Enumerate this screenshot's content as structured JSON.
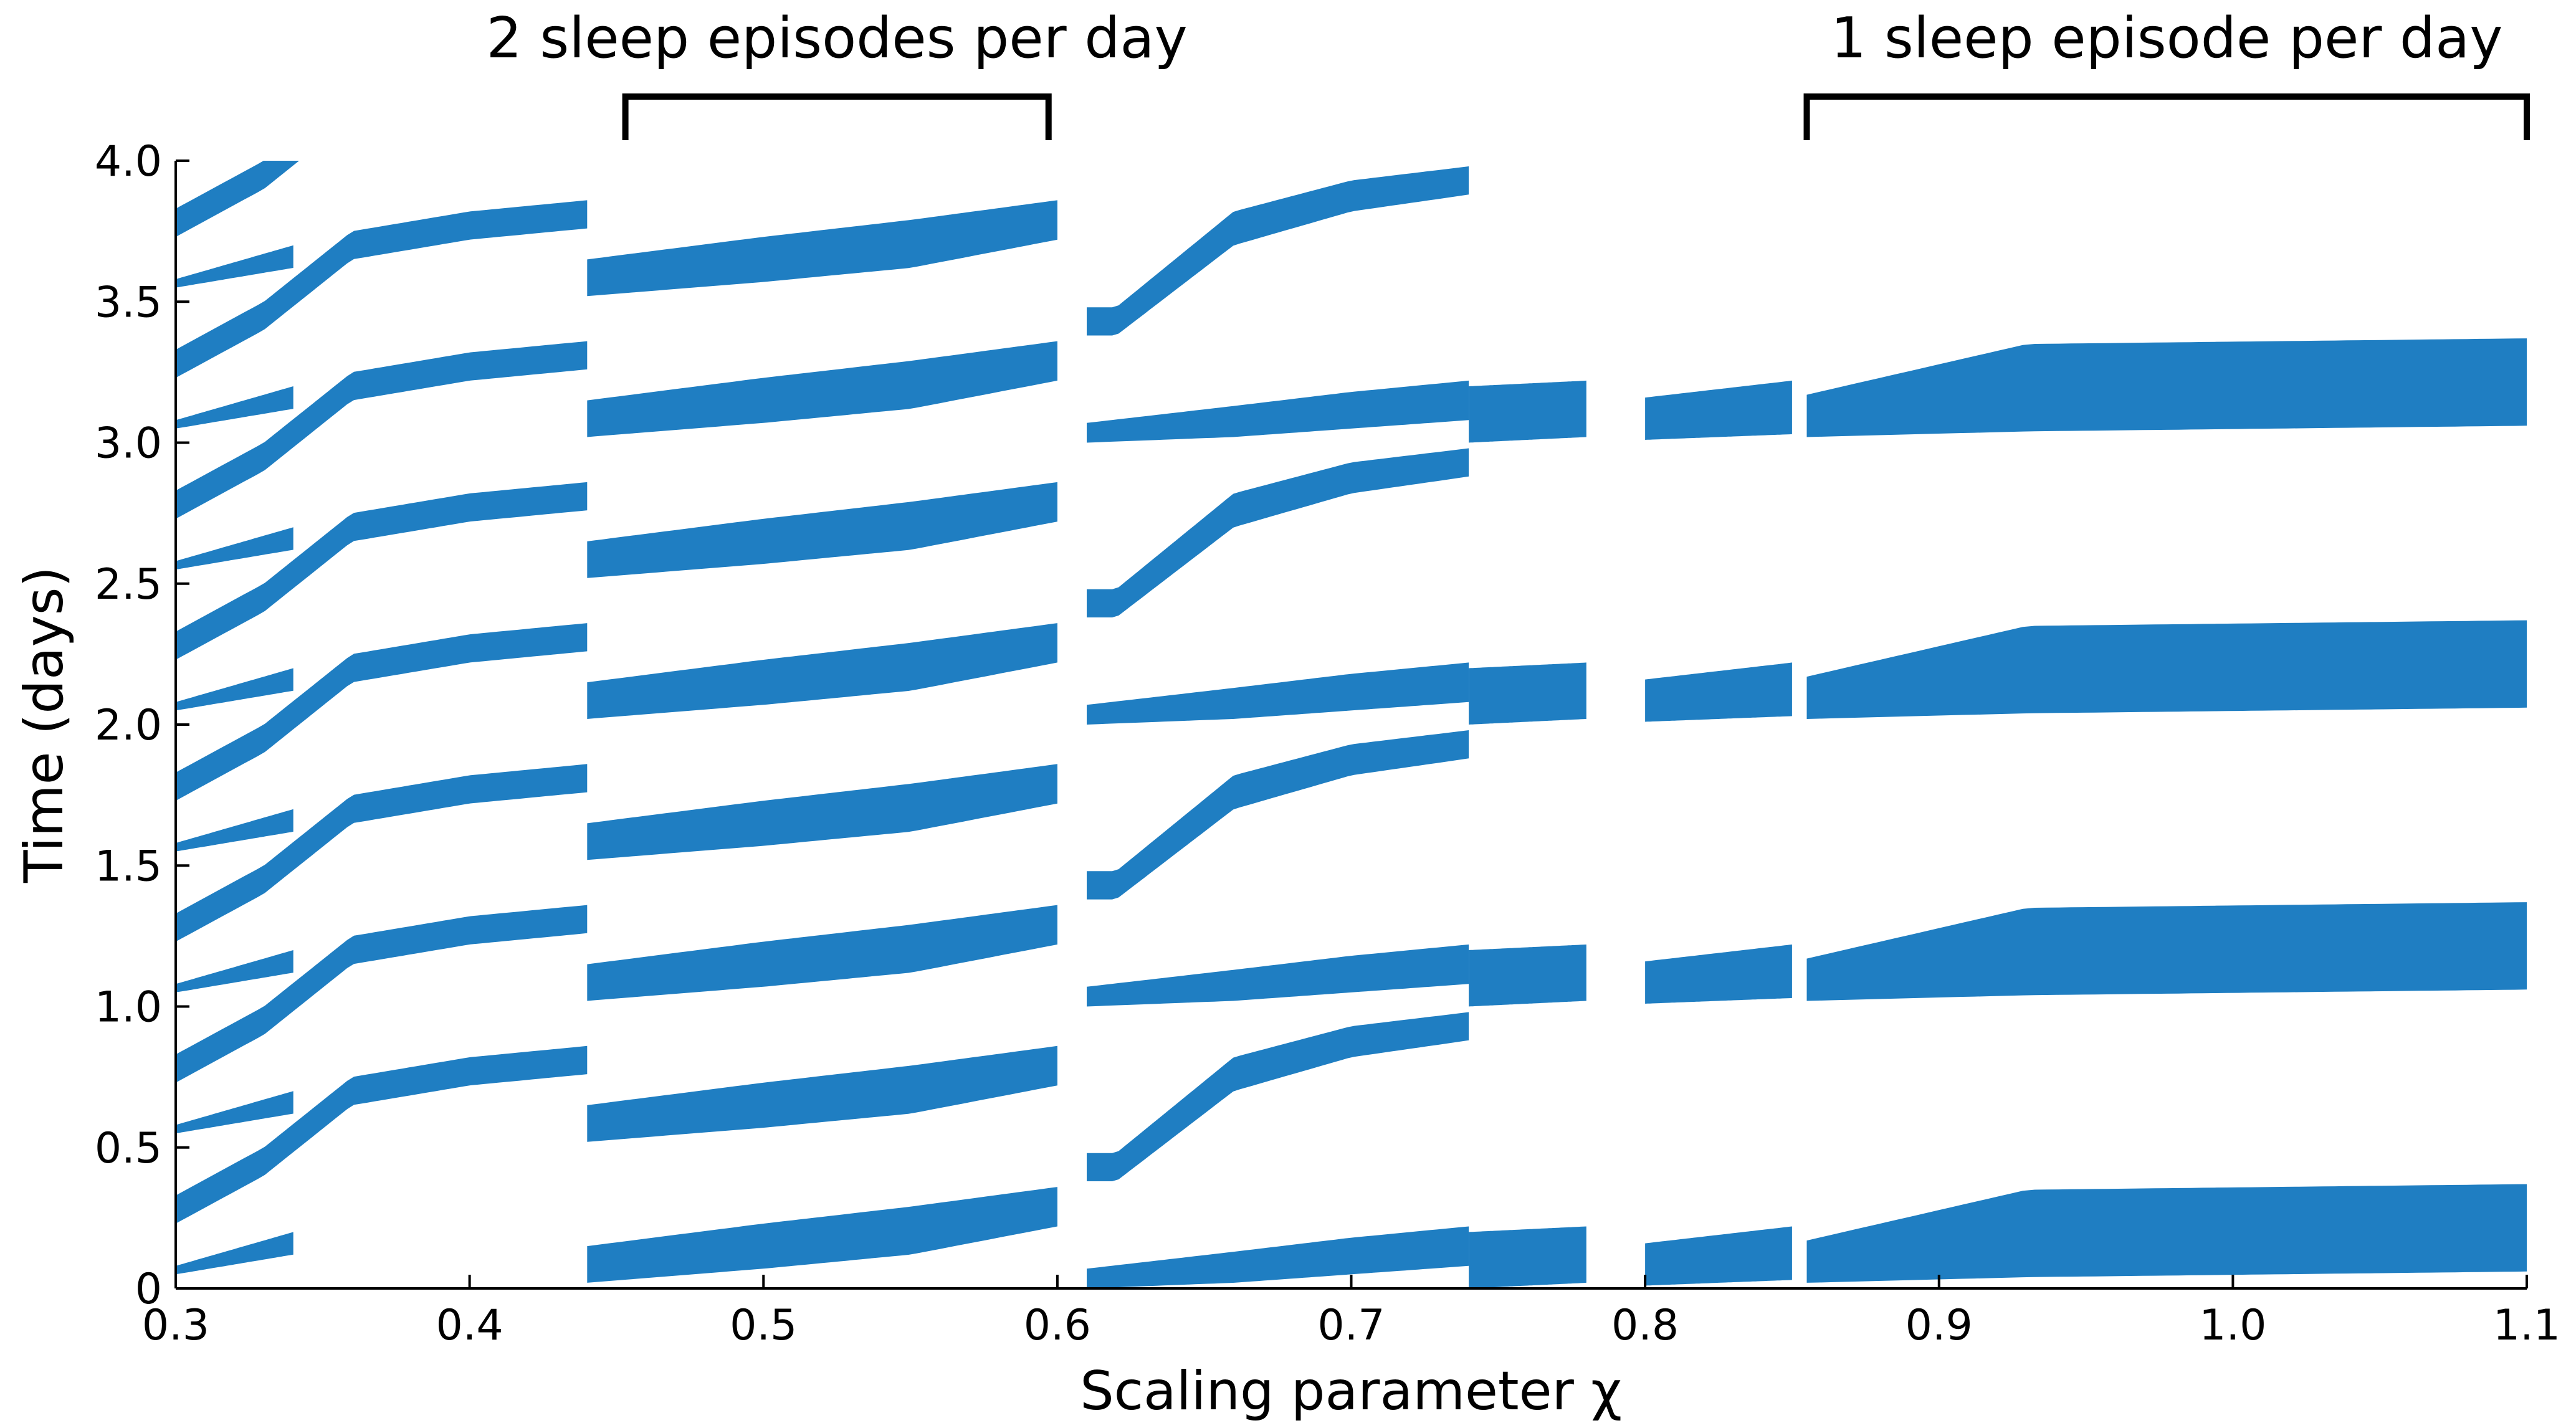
{
  "chart_data": {
    "type": "scatter",
    "title": "",
    "xlabel": "Scaling parameter χ",
    "ylabel": "Time (days)",
    "xlim": [
      0.3,
      1.1
    ],
    "ylim": [
      0,
      4.0
    ],
    "grid": false,
    "legend": "none",
    "series_color": "#1f7ec2",
    "x_ticks": [
      {
        "value": 0.3,
        "label": "0.3"
      },
      {
        "value": 0.4,
        "label": "0.4"
      },
      {
        "value": 0.5,
        "label": "0.5"
      },
      {
        "value": 0.6,
        "label": "0.6"
      },
      {
        "value": 0.7,
        "label": "0.7"
      },
      {
        "value": 0.8,
        "label": "0.8"
      },
      {
        "value": 0.9,
        "label": "0.9"
      },
      {
        "value": 1.0,
        "label": "1.0"
      },
      {
        "value": 1.1,
        "label": "1.1"
      }
    ],
    "y_ticks": [
      {
        "value": 0.0,
        "label": "0"
      },
      {
        "value": 0.5,
        "label": "0.5"
      },
      {
        "value": 1.0,
        "label": "1.0"
      },
      {
        "value": 1.5,
        "label": "1.5"
      },
      {
        "value": 2.0,
        "label": "2.0"
      },
      {
        "value": 2.5,
        "label": "2.5"
      },
      {
        "value": 3.0,
        "label": "3.0"
      },
      {
        "value": 3.5,
        "label": "3.5"
      },
      {
        "value": 4.0,
        "label": "4.0"
      }
    ],
    "annotations": [
      {
        "text": "2 sleep episodes per day",
        "x_from": 0.453,
        "x_to": 0.597
      },
      {
        "text": "1 sleep episode per day",
        "x_from": 0.855,
        "x_to": 1.1
      }
    ],
    "sleep_bands": [
      {
        "x": [
          0.3,
          0.34
        ],
        "lower": [
          [
            0.3,
            0.05
          ],
          [
            0.34,
            0.12
          ]
        ],
        "upper": [
          [
            0.3,
            0.08
          ],
          [
            0.34,
            0.2
          ]
        ],
        "period": 0.5
      },
      {
        "x": [
          0.3,
          0.44
        ],
        "lower": [
          [
            0.3,
            0.23
          ],
          [
            0.33,
            0.4
          ],
          [
            0.36,
            0.65
          ],
          [
            0.4,
            0.72
          ],
          [
            0.44,
            0.76
          ]
        ],
        "upper": [
          [
            0.3,
            0.33
          ],
          [
            0.33,
            0.5
          ],
          [
            0.36,
            0.75
          ],
          [
            0.4,
            0.82
          ],
          [
            0.44,
            0.86
          ]
        ],
        "period": 0.5
      },
      {
        "x": [
          0.44,
          0.6
        ],
        "lower": [
          [
            0.44,
            0.02
          ],
          [
            0.5,
            0.07
          ],
          [
            0.55,
            0.12
          ],
          [
            0.6,
            0.22
          ]
        ],
        "upper": [
          [
            0.44,
            0.15
          ],
          [
            0.5,
            0.23
          ],
          [
            0.55,
            0.29
          ],
          [
            0.6,
            0.36
          ]
        ],
        "period": 0.5
      },
      {
        "x": [
          0.61,
          0.74
        ],
        "lower": [
          [
            0.61,
            0.0
          ],
          [
            0.66,
            0.02
          ],
          [
            0.7,
            0.05
          ],
          [
            0.74,
            0.08
          ]
        ],
        "upper": [
          [
            0.61,
            0.07
          ],
          [
            0.66,
            0.13
          ],
          [
            0.7,
            0.18
          ],
          [
            0.74,
            0.22
          ]
        ],
        "period": 1.0
      },
      {
        "x": [
          0.61,
          0.74
        ],
        "lower": [
          [
            0.62,
            0.38
          ],
          [
            0.66,
            0.7
          ],
          [
            0.7,
            0.82
          ],
          [
            0.74,
            0.88
          ]
        ],
        "upper": [
          [
            0.62,
            0.48
          ],
          [
            0.66,
            0.82
          ],
          [
            0.7,
            0.93
          ],
          [
            0.74,
            0.98
          ]
        ],
        "period": 1.0
      },
      {
        "x": [
          0.74,
          0.78
        ],
        "lower": [
          [
            0.74,
            0.0
          ],
          [
            0.78,
            0.02
          ]
        ],
        "upper": [
          [
            0.74,
            0.2
          ],
          [
            0.78,
            0.22
          ]
        ],
        "period": 1.0
      },
      {
        "x": [
          0.8,
          0.85
        ],
        "lower": [
          [
            0.8,
            0.01
          ],
          [
            0.85,
            0.03
          ]
        ],
        "upper": [
          [
            0.8,
            0.16
          ],
          [
            0.85,
            0.22
          ]
        ],
        "period": 1.0
      },
      {
        "x": [
          0.855,
          1.1
        ],
        "lower": [
          [
            0.855,
            0.02
          ],
          [
            0.93,
            0.04
          ],
          [
            1.1,
            0.06
          ]
        ],
        "upper": [
          [
            0.855,
            0.17
          ],
          [
            0.93,
            0.35
          ],
          [
            1.1,
            0.37
          ]
        ],
        "period": 1.0
      }
    ]
  }
}
